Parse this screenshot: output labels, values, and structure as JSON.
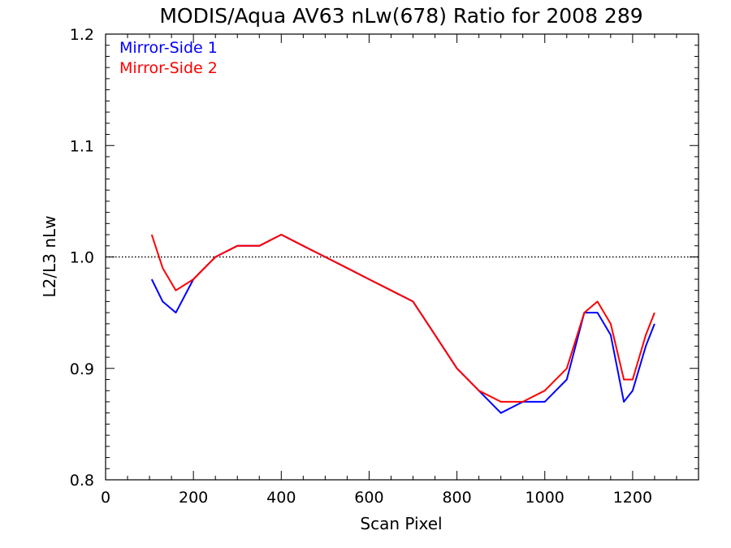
{
  "chart_data": {
    "type": "line",
    "title": "MODIS/Aqua AV63 nLw(678) Ratio for 2008 289",
    "xlabel": "Scan Pixel",
    "ylabel": "L2/L3 nLw",
    "xlim": [
      0,
      1350
    ],
    "ylim": [
      0.8,
      1.2
    ],
    "x_ticks": [
      0,
      200,
      400,
      600,
      800,
      1000,
      1200
    ],
    "x_tick_labels": [
      "0",
      "200",
      "400",
      "600",
      "800",
      "1000",
      "1200"
    ],
    "y_ticks": [
      0.8,
      0.9,
      1.0,
      1.1,
      1.2
    ],
    "y_tick_labels": [
      "0.8",
      "0.9",
      "1.0",
      "1.1",
      "1.2"
    ],
    "reference_line": {
      "y": 1.0,
      "style": "dotted"
    },
    "legend_position": "top-left",
    "series": [
      {
        "name": "Mirror-Side 1",
        "color": "#0000ff",
        "x": [
          105,
          130,
          160,
          200,
          250,
          300,
          350,
          400,
          450,
          500,
          550,
          600,
          650,
          700,
          750,
          800,
          850,
          900,
          950,
          1000,
          1050,
          1090,
          1120,
          1150,
          1180,
          1200,
          1230,
          1250
        ],
        "values": [
          0.98,
          0.96,
          0.95,
          0.98,
          1.0,
          1.01,
          1.01,
          1.02,
          1.01,
          1.0,
          0.99,
          0.98,
          0.97,
          0.96,
          0.93,
          0.9,
          0.88,
          0.86,
          0.87,
          0.87,
          0.89,
          0.95,
          0.95,
          0.93,
          0.87,
          0.88,
          0.92,
          0.94
        ]
      },
      {
        "name": "Mirror-Side 2",
        "color": "#ff0000",
        "x": [
          105,
          130,
          160,
          200,
          250,
          300,
          350,
          400,
          450,
          500,
          550,
          600,
          650,
          700,
          750,
          800,
          850,
          900,
          950,
          1000,
          1050,
          1090,
          1120,
          1150,
          1180,
          1200,
          1230,
          1250
        ],
        "values": [
          1.02,
          0.99,
          0.97,
          0.98,
          1.0,
          1.01,
          1.01,
          1.02,
          1.01,
          1.0,
          0.99,
          0.98,
          0.97,
          0.96,
          0.93,
          0.9,
          0.88,
          0.87,
          0.87,
          0.88,
          0.9,
          0.95,
          0.96,
          0.94,
          0.89,
          0.89,
          0.93,
          0.95
        ]
      }
    ]
  }
}
